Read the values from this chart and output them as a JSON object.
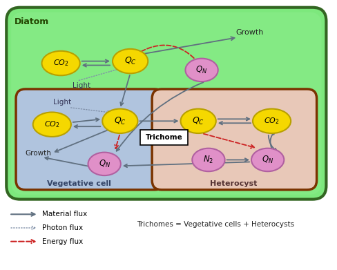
{
  "bg_green_light": "#7de87d",
  "bg_green_dark": "#44bb44",
  "bg_veg": "#b0c4de",
  "bg_het": "#e8c8b8",
  "node_yellow": "#f5d800",
  "node_yellow_edge": "#b8a000",
  "node_pink": "#e090c8",
  "node_pink_edge": "#b060a0",
  "arrow_material": "#607080",
  "arrow_photon": "#8090a8",
  "arrow_energy": "#cc2222",
  "diatom_border": "#336622",
  "cell_border": "#7a3300",
  "trichome_label": "Trichome",
  "diatom_label": "Diatom",
  "veg_label": "Vegetative cell",
  "het_label": "Heterocyst",
  "growth_label": "Growth",
  "light_label": "Light",
  "legend_material": "Material flux",
  "legend_photon": "Photon flux",
  "legend_energy": "Energy flux",
  "trichomes_eq": "Trichomes = Vegetative cells + Heterocysts"
}
